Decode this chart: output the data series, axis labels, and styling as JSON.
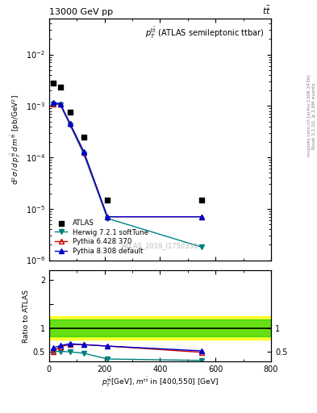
{
  "title_left": "13000 GeV pp",
  "title_right": "t$\\bar{t}$",
  "plot_title": "$p_T^{\\mathrm{t\\bar{t}ar}}$ (ATLAS semileptonic ttbar)",
  "ylabel_main": "$\\mathrm{d}^2\\sigma\\,/\\,d\\,p_T^{\\mathrm{t\\bar{t}}}\\,d\\,m^{\\mathrm{t\\bar{t}}}$ [pb/GeV$^2$]",
  "ylabel_ratio": "Ratio to ATLAS",
  "xlabel": "$p_T^{\\mathrm{t\\bar{t}}}$[GeV], $m^{\\mathrm{t\\bar{t}}}$ in [400,550] [GeV]",
  "watermark": "ATLAS_2019_I1750330",
  "right_label": "mcplots.cern.ch [arXiv:1306.3436]",
  "right_label2": "Rivet 3.1.10, ≥ 2.8M events",
  "atlas_x": [
    15,
    40,
    75,
    125,
    210,
    550
  ],
  "atlas_y": [
    0.0028,
    0.0023,
    0.00075,
    0.00025,
    1.5e-05,
    1.5e-05
  ],
  "herwig_x": [
    15,
    40,
    75,
    125,
    210,
    550
  ],
  "herwig_y": [
    0.0011,
    0.00105,
    0.00043,
    0.000115,
    6.5e-06,
    1.8e-06
  ],
  "pythia6_x": [
    15,
    40,
    75,
    125,
    210,
    550
  ],
  "pythia6_y": [
    0.0011,
    0.0011,
    0.00045,
    0.000125,
    7e-06,
    7e-06
  ],
  "pythia8_x": [
    15,
    40,
    75,
    125,
    210,
    550
  ],
  "pythia8_y": [
    0.00115,
    0.0011,
    0.00046,
    0.00013,
    7e-06,
    7e-06
  ],
  "herwig_ratio": [
    0.5,
    0.51,
    0.5,
    0.47,
    0.35,
    0.32
  ],
  "pythia6_ratio": [
    0.51,
    0.61,
    0.65,
    0.65,
    0.62,
    0.49
  ],
  "pythia8_ratio": [
    0.58,
    0.63,
    0.67,
    0.65,
    0.62,
    0.52
  ],
  "atlas_color": "#000000",
  "herwig_color": "#008080",
  "pythia6_color": "#cc0000",
  "pythia8_color": "#0000cc",
  "band_green_low": 0.9,
  "band_green_high": 1.1,
  "band_yellow_low": 0.75,
  "band_yellow_high": 1.25,
  "band_green_low2": 0.82,
  "band_green_high2": 1.18,
  "band_yellow_low2": 0.68,
  "band_yellow_high2": 1.35,
  "ylim_main": [
    1e-06,
    0.05
  ],
  "ylim_ratio": [
    0.3,
    2.2
  ],
  "xlim": [
    0,
    800
  ]
}
